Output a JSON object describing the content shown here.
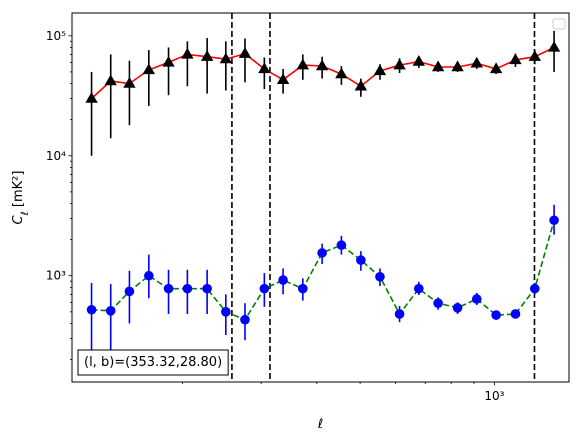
{
  "chart_data": {
    "type": "scatter",
    "xscale": "log",
    "yscale": "log",
    "xlabel": "ℓ",
    "ylabel": "C_ℓ [mK²]",
    "xlim": [
      113,
      1470
    ],
    "ylim": [
      130,
      155000
    ],
    "grid": false,
    "legend": "upper right (empty)",
    "x_ticks": [
      {
        "value": 1000,
        "label": "10³"
      }
    ],
    "y_ticks": [
      {
        "value": 1000,
        "label": "10³"
      },
      {
        "value": 10000,
        "label": "10⁴"
      },
      {
        "value": 100000,
        "label": "10⁵"
      }
    ],
    "vlines": [
      {
        "x": 258,
        "style": "dashed",
        "color": "#000000"
      },
      {
        "x": 314,
        "style": "dashed",
        "color": "#000000"
      },
      {
        "x": 1230,
        "style": "dashed",
        "color": "#000000"
      }
    ],
    "annotation": {
      "prefix": "(l, b)=",
      "value": "(353.32,28.80)"
    },
    "series": [
      {
        "marker": "triangle",
        "marker_color": "#000000",
        "line_color": "#ff0000",
        "line_style": "solid",
        "errorbar_color": "#000000",
        "points": [
          {
            "x": 125,
            "y": 30000,
            "lo": 10000,
            "hi": 50000
          },
          {
            "x": 138,
            "y": 42000,
            "lo": 14000,
            "hi": 70000
          },
          {
            "x": 152,
            "y": 40000,
            "lo": 18000,
            "hi": 62000
          },
          {
            "x": 168,
            "y": 52000,
            "lo": 26000,
            "hi": 76000
          },
          {
            "x": 186,
            "y": 60000,
            "lo": 32000,
            "hi": 80000
          },
          {
            "x": 205,
            "y": 70000,
            "lo": 38000,
            "hi": 90000
          },
          {
            "x": 227,
            "y": 67000,
            "lo": 33000,
            "hi": 96000
          },
          {
            "x": 250,
            "y": 64000,
            "lo": 35000,
            "hi": 90000
          },
          {
            "x": 276,
            "y": 71000,
            "lo": 41000,
            "hi": 95000
          },
          {
            "x": 305,
            "y": 53000,
            "lo": 36000,
            "hi": 66000
          },
          {
            "x": 336,
            "y": 43000,
            "lo": 33000,
            "hi": 53000
          },
          {
            "x": 372,
            "y": 57000,
            "lo": 43000,
            "hi": 70000
          },
          {
            "x": 411,
            "y": 56000,
            "lo": 44000,
            "hi": 67000
          },
          {
            "x": 454,
            "y": 48000,
            "lo": 39000,
            "hi": 56000
          },
          {
            "x": 502,
            "y": 38000,
            "lo": 31000,
            "hi": 44000
          },
          {
            "x": 554,
            "y": 51000,
            "lo": 43000,
            "hi": 58000
          },
          {
            "x": 613,
            "y": 57000,
            "lo": 49000,
            "hi": 65000
          },
          {
            "x": 677,
            "y": 61000,
            "lo": 54000,
            "hi": 68000
          },
          {
            "x": 748,
            "y": 55000,
            "lo": 50000,
            "hi": 61000
          },
          {
            "x": 827,
            "y": 55000,
            "lo": 50000,
            "hi": 61000
          },
          {
            "x": 913,
            "y": 59000,
            "lo": 53000,
            "hi": 65000
          },
          {
            "x": 1009,
            "y": 53000,
            "lo": 48000,
            "hi": 58000
          },
          {
            "x": 1115,
            "y": 63000,
            "lo": 55000,
            "hi": 71000
          },
          {
            "x": 1232,
            "y": 67000,
            "lo": 58000,
            "hi": 76000
          },
          {
            "x": 1361,
            "y": 80000,
            "lo": 50000,
            "hi": 110000
          }
        ]
      },
      {
        "marker": "circle",
        "marker_color": "#0000ff",
        "line_color": "#008000",
        "line_style": "dashed",
        "errorbar_color": "#0000ff",
        "points": [
          {
            "x": 125,
            "y": 520,
            "lo": 230,
            "hi": 870
          },
          {
            "x": 138,
            "y": 510,
            "lo": 230,
            "hi": 850
          },
          {
            "x": 152,
            "y": 740,
            "lo": 400,
            "hi": 1100
          },
          {
            "x": 168,
            "y": 1000,
            "lo": 650,
            "hi": 1500
          },
          {
            "x": 186,
            "y": 780,
            "lo": 480,
            "hi": 1120
          },
          {
            "x": 205,
            "y": 780,
            "lo": 480,
            "hi": 1120
          },
          {
            "x": 227,
            "y": 780,
            "lo": 480,
            "hi": 1120
          },
          {
            "x": 250,
            "y": 500,
            "lo": 320,
            "hi": 700
          },
          {
            "x": 276,
            "y": 430,
            "lo": 290,
            "hi": 590
          },
          {
            "x": 305,
            "y": 780,
            "lo": 550,
            "hi": 1050
          },
          {
            "x": 336,
            "y": 920,
            "lo": 700,
            "hi": 1150
          },
          {
            "x": 372,
            "y": 780,
            "lo": 620,
            "hi": 950
          },
          {
            "x": 411,
            "y": 1550,
            "lo": 1250,
            "hi": 1850
          },
          {
            "x": 454,
            "y": 1800,
            "lo": 1500,
            "hi": 2150
          },
          {
            "x": 502,
            "y": 1350,
            "lo": 1100,
            "hi": 1600
          },
          {
            "x": 554,
            "y": 980,
            "lo": 820,
            "hi": 1150
          },
          {
            "x": 613,
            "y": 480,
            "lo": 410,
            "hi": 560
          },
          {
            "x": 677,
            "y": 780,
            "lo": 690,
            "hi": 890
          },
          {
            "x": 748,
            "y": 590,
            "lo": 520,
            "hi": 660
          },
          {
            "x": 827,
            "y": 540,
            "lo": 480,
            "hi": 600
          },
          {
            "x": 913,
            "y": 640,
            "lo": 570,
            "hi": 720
          },
          {
            "x": 1009,
            "y": 470,
            "lo": 430,
            "hi": 510
          },
          {
            "x": 1115,
            "y": 480,
            "lo": 440,
            "hi": 520
          },
          {
            "x": 1232,
            "y": 780,
            "lo": 700,
            "hi": 870
          },
          {
            "x": 1361,
            "y": 2900,
            "lo": 2200,
            "hi": 3900
          }
        ]
      }
    ]
  }
}
